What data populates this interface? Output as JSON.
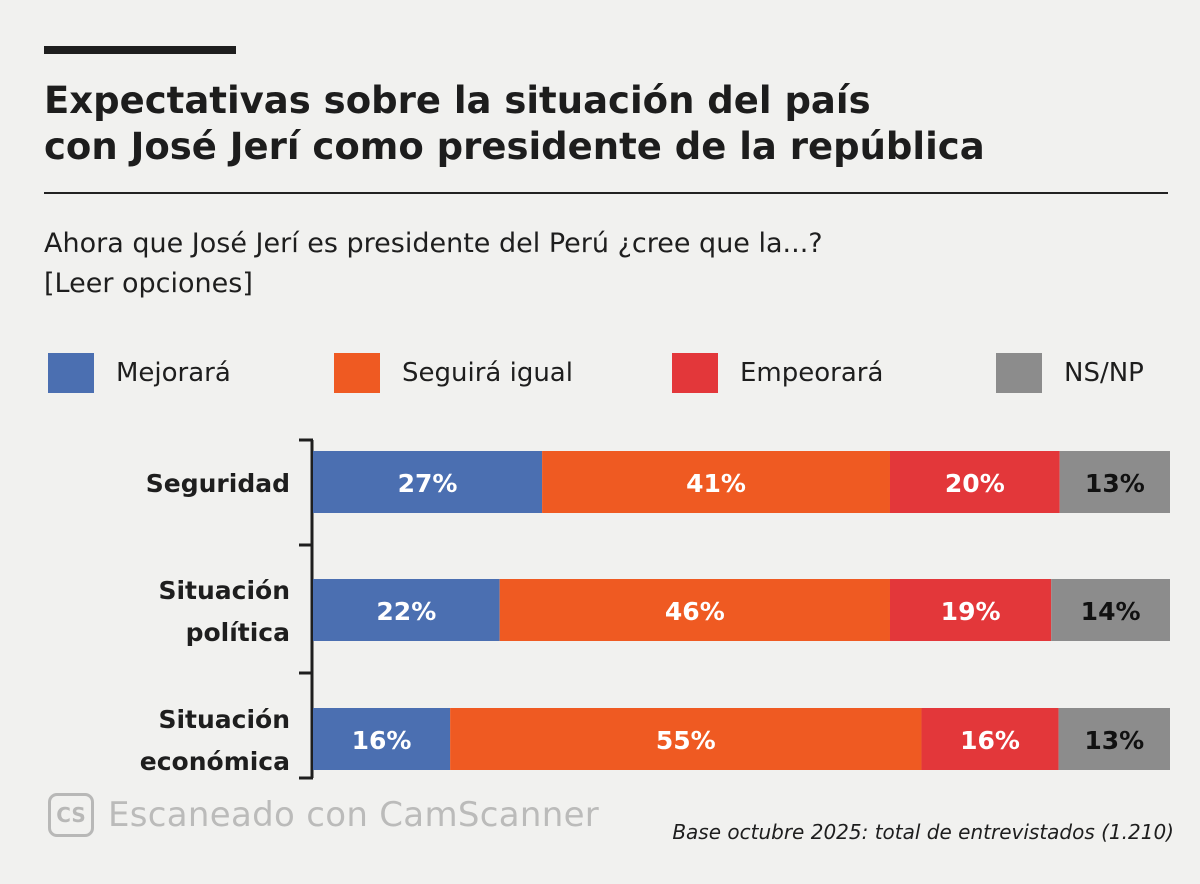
{
  "header": {
    "title_line1": "Expectativas sobre la situación del país",
    "title_line2": "con José Jerí como presidente de la república",
    "question_line1": "Ahora que José Jerí es presidente del Perú ¿cree que la...?",
    "question_line2": "[Leer opciones]"
  },
  "colors": {
    "mejorara": "#4b6fb1",
    "seguira_igual": "#ef5a22",
    "empeorara": "#e3373a",
    "nsnp": "#8c8c8c"
  },
  "chart_data": {
    "type": "bar",
    "orientation": "horizontal",
    "stacked": true,
    "normalized": "percent",
    "categories": [
      [
        "Seguridad"
      ],
      [
        "Situación",
        "política"
      ],
      [
        "Situación",
        "económica"
      ]
    ],
    "series": [
      {
        "name": "Mejorará",
        "color": "#4b6fb1",
        "values": [
          27,
          22,
          16
        ],
        "labels": [
          "27%",
          "22%",
          "16%"
        ]
      },
      {
        "name": "Seguirá igual",
        "color": "#ef5a22",
        "values": [
          41,
          46,
          55
        ],
        "labels": [
          "41%",
          "46%",
          "55%"
        ]
      },
      {
        "name": "Empeorará",
        "color": "#e3373a",
        "values": [
          20,
          19,
          16
        ],
        "labels": [
          "20%",
          "19%",
          "16%"
        ]
      },
      {
        "name": "NS/NP",
        "color": "#8c8c8c",
        "values": [
          13,
          14,
          13
        ],
        "labels": [
          "13%",
          "14%",
          "13%"
        ]
      }
    ],
    "legend_position": "top",
    "grid": false
  },
  "footnote": "Base octubre 2025: total de entrevistados (1.210)",
  "watermark": {
    "logo_text": "CS",
    "text": "Escaneado con CamScanner"
  }
}
